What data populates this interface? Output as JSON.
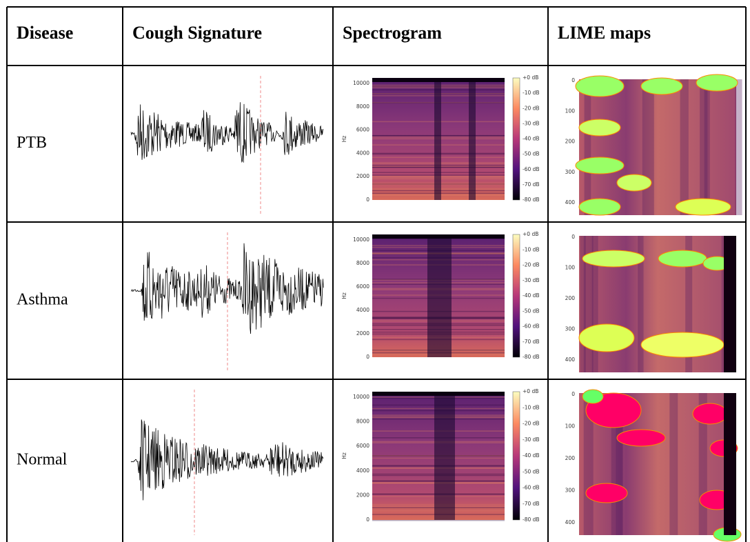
{
  "table": {
    "header": [
      "Disease",
      "Cough Signature",
      "Spectrogram",
      "LIME maps"
    ],
    "rows": [
      [
        "PTB"
      ],
      [
        "Asthma"
      ],
      [
        "Normal"
      ]
    ]
  },
  "spectrogram_axis": {
    "freq_label": "Hz",
    "freq_ticks": [
      "10000",
      "8000",
      "6000",
      "4000",
      "2000",
      "0"
    ],
    "db_ticks": [
      "+0 dB",
      "-10 dB",
      "-20 dB",
      "-30 dB",
      "-40 dB",
      "-50 dB",
      "-60 dB",
      "-70 dB",
      "-80 dB"
    ]
  },
  "lime_axis": {
    "ticks": [
      "0",
      "100",
      "200",
      "300",
      "400"
    ]
  }
}
